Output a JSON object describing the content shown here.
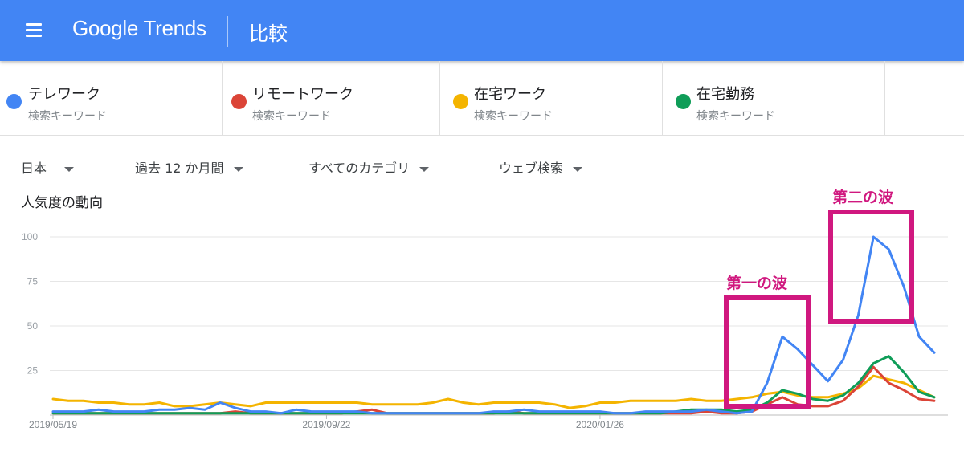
{
  "header": {
    "logo_text": "Google Trends",
    "page_title": "比較"
  },
  "terms": [
    {
      "name": "テレワーク",
      "sub": "検索キーワード",
      "color": "#4285f4"
    },
    {
      "name": "リモートワーク",
      "sub": "検索キーワード",
      "color": "#db4437"
    },
    {
      "name": "在宅ワーク",
      "sub": "検索キーワード",
      "color": "#f4b400"
    },
    {
      "name": "在宅勤務",
      "sub": "検索キーワード",
      "color": "#0f9d58"
    }
  ],
  "filters": {
    "region": "日本",
    "period": "過去 12 か月間",
    "category": "すべてのカテゴリ",
    "search_type": "ウェブ検索"
  },
  "section_title": "人気度の動向",
  "annotations": {
    "first_wave": "第一の波",
    "second_wave": "第二の波",
    "color": "#d0187f"
  },
  "chart_data": {
    "type": "line",
    "x_labels": [
      "2019/05/19",
      "2019/09/22",
      "2020/01/26"
    ],
    "yticks": [
      25,
      50,
      75,
      100
    ],
    "ylim": [
      0,
      100
    ],
    "grid": true,
    "legend": "top",
    "series": [
      {
        "name": "テレワーク",
        "color": "#4285f4",
        "values": [
          2,
          2,
          2,
          3,
          2,
          2,
          2,
          3,
          3,
          4,
          3,
          7,
          4,
          2,
          2,
          1,
          3,
          2,
          2,
          2,
          2,
          1,
          1,
          1,
          1,
          1,
          1,
          1,
          1,
          2,
          2,
          3,
          2,
          2,
          2,
          2,
          2,
          1,
          1,
          2,
          2,
          2,
          2,
          3,
          2,
          1,
          2,
          18,
          44,
          37,
          28,
          19,
          31,
          56,
          100,
          93,
          72,
          44,
          35
        ]
      },
      {
        "name": "リモートワーク",
        "color": "#db4437",
        "values": [
          1,
          1,
          1,
          1,
          1,
          1,
          1,
          1,
          1,
          1,
          1,
          1,
          2,
          1,
          1,
          1,
          1,
          1,
          1,
          1,
          2,
          3,
          1,
          1,
          1,
          1,
          1,
          1,
          1,
          1,
          2,
          1,
          1,
          1,
          1,
          1,
          1,
          1,
          1,
          1,
          1,
          1,
          1,
          2,
          1,
          1,
          2,
          6,
          10,
          6,
          5,
          5,
          8,
          16,
          27,
          18,
          14,
          9,
          8
        ]
      },
      {
        "name": "在宅ワーク",
        "color": "#f4b400",
        "values": [
          9,
          8,
          8,
          7,
          7,
          6,
          6,
          7,
          5,
          5,
          6,
          7,
          6,
          5,
          7,
          7,
          7,
          7,
          7,
          7,
          7,
          6,
          6,
          6,
          6,
          7,
          9,
          7,
          6,
          7,
          7,
          7,
          7,
          6,
          4,
          5,
          7,
          7,
          8,
          8,
          8,
          8,
          9,
          8,
          8,
          9,
          10,
          12,
          13,
          11,
          10,
          10,
          12,
          15,
          22,
          20,
          18,
          14,
          10
        ]
      },
      {
        "name": "在宅勤務",
        "color": "#0f9d58",
        "values": [
          1,
          1,
          1,
          1,
          1,
          1,
          1,
          1,
          1,
          1,
          1,
          1,
          1,
          1,
          1,
          1,
          1,
          1,
          1,
          1,
          1,
          1,
          1,
          1,
          1,
          1,
          1,
          1,
          1,
          1,
          1,
          1,
          1,
          1,
          1,
          1,
          1,
          1,
          1,
          1,
          1,
          2,
          3,
          3,
          3,
          2,
          3,
          7,
          14,
          12,
          9,
          8,
          11,
          18,
          29,
          33,
          24,
          13,
          10
        ]
      }
    ]
  }
}
